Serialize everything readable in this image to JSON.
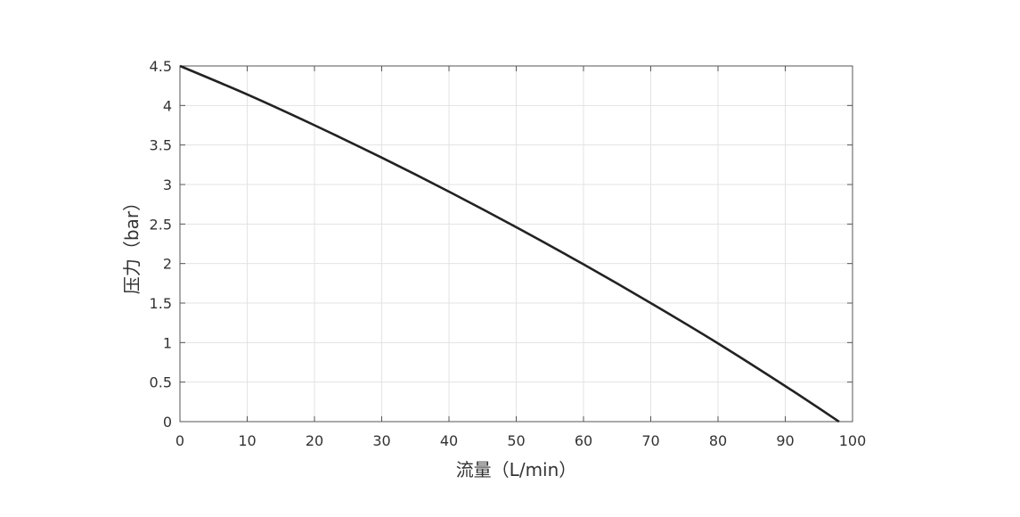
{
  "chart_data": {
    "type": "line",
    "title": "",
    "xlabel": "流量（L/min）",
    "ylabel": "压力（bar）",
    "xlim": [
      0,
      100
    ],
    "ylim": [
      0,
      4.5
    ],
    "x_ticks": [
      "0",
      "10",
      "20",
      "30",
      "40",
      "50",
      "60",
      "70",
      "80",
      "90",
      "100"
    ],
    "y_ticks": [
      "0",
      "0.5",
      "1",
      "1.5",
      "2",
      "2.5",
      "3",
      "3.5",
      "4",
      "4.5"
    ],
    "grid": true,
    "series": [
      {
        "color": "#222222",
        "x": [
          0,
          10,
          20,
          30,
          40,
          50,
          60,
          70,
          80,
          90,
          98
        ],
        "y": [
          4.5,
          4.14,
          3.75,
          3.34,
          2.91,
          2.46,
          1.99,
          1.5,
          0.99,
          0.45,
          0.0
        ]
      }
    ]
  }
}
